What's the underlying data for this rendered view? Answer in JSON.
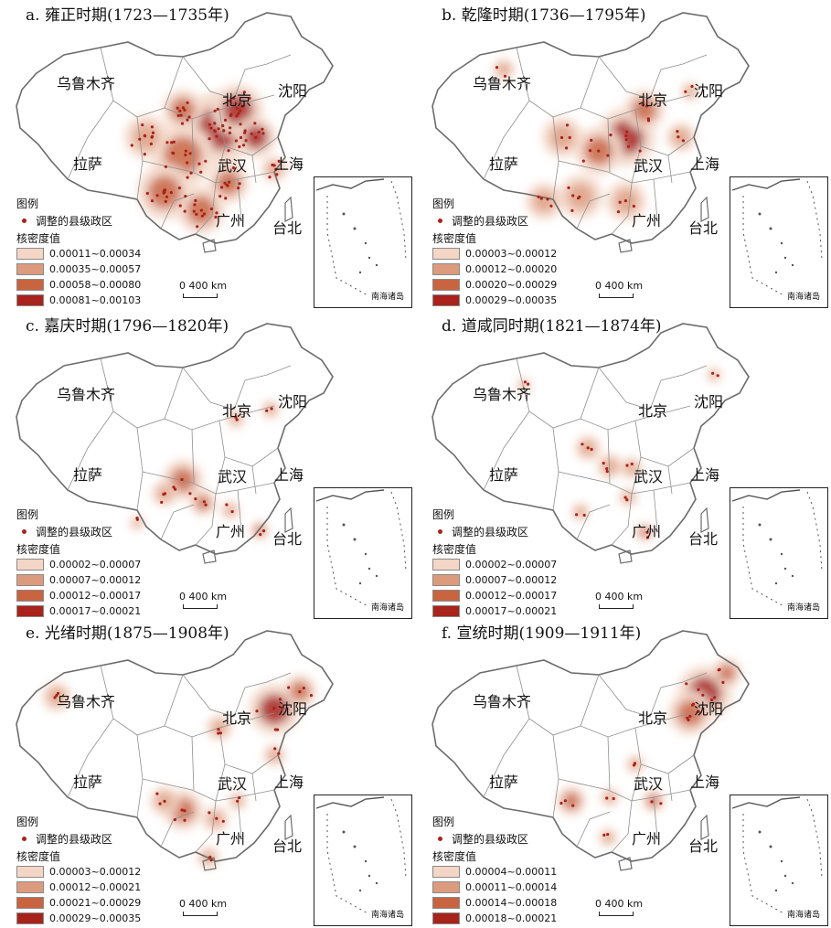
{
  "city_labels": {
    "urumqi": "乌鲁木齐",
    "beijing": "北京",
    "shenyang": "沈阳",
    "lhasa": "拉萨",
    "wuhan": "武汉",
    "shanghai": "上海",
    "guangzhou": "广州",
    "taipei": "台北"
  },
  "inset_label": "南海诸岛",
  "legend_title": "图例",
  "kernel_density_label": "核密度值",
  "scale_label": "0  400 km",
  "colors": {
    "class1": "#f3d6c6",
    "class2": "#dd9b7e",
    "class3": "#c8643f",
    "class4": "#a8231b",
    "point": "#a8231b",
    "border": "#6b6b6b"
  },
  "panels": [
    {
      "title": "a. 雍正时期(1723—1735年)",
      "point_label": "调整的县级政区",
      "classes": [
        "0.00011~0.00034",
        "0.00035~0.00057",
        "0.00058~0.00080",
        "0.00081~0.00103"
      ]
    },
    {
      "title": "b. 乾隆时期(1736—1795年)",
      "point_label": "调整的县级政区",
      "classes": [
        "0.00003~0.00012",
        "0.00012~0.00020",
        "0.00020~0.00029",
        "0.00029~0.00035"
      ]
    },
    {
      "title": "c. 嘉庆时期(1796—1820年)",
      "point_label": "调整的县级政区",
      "classes": [
        "0.00002~0.00007",
        "0.00007~0.00012",
        "0.00012~0.00017",
        "0.00017~0.00021"
      ]
    },
    {
      "title": "d. 道咸同时期(1821—1874年)",
      "point_label": "调整的县级政区",
      "classes": [
        "0.00002~0.00007",
        "0.00007~0.00012",
        "0.00012~0.00017",
        "0.00017~0.00021"
      ]
    },
    {
      "title": "e. 光绪时期(1875—1908年)",
      "point_label": "调整的县级政区",
      "classes": [
        "0.00003~0.00012",
        "0.00012~0.00021",
        "0.00021~0.00029",
        "0.00029~0.00035"
      ]
    },
    {
      "title": "f. 宣统时期(1909—1911年)",
      "point_label": "调整的县级政区",
      "classes": [
        "0.00004~0.00011",
        "0.00011~0.00014",
        "0.00014~0.00018",
        "0.00018~0.00021"
      ]
    }
  ]
}
